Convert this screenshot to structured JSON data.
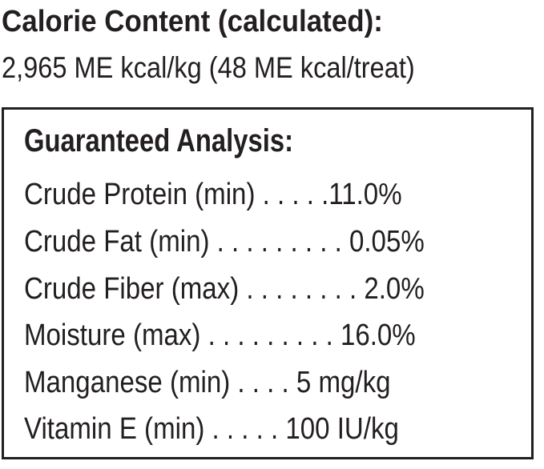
{
  "calorie": {
    "heading": "Calorie Content (calculated):",
    "value": "2,965 ME kcal/kg (48 ME kcal/treat)"
  },
  "guaranteed_analysis": {
    "heading": "Guaranteed Analysis:",
    "rows": [
      {
        "text": "Crude Protein (min) . . . . .11.0%"
      },
      {
        "text": "Crude Fat (min) . . . . . . . . . 0.05%"
      },
      {
        "text": "Crude Fiber (max) . . . . . . . . 2.0%"
      },
      {
        "text": "Moisture (max) . . . . . . . . . 16.0%"
      },
      {
        "text": "Manganese (min) . . . . 5 mg/kg"
      },
      {
        "text": "Vitamin E (min) . . . . . 100 IU/kg"
      }
    ]
  }
}
